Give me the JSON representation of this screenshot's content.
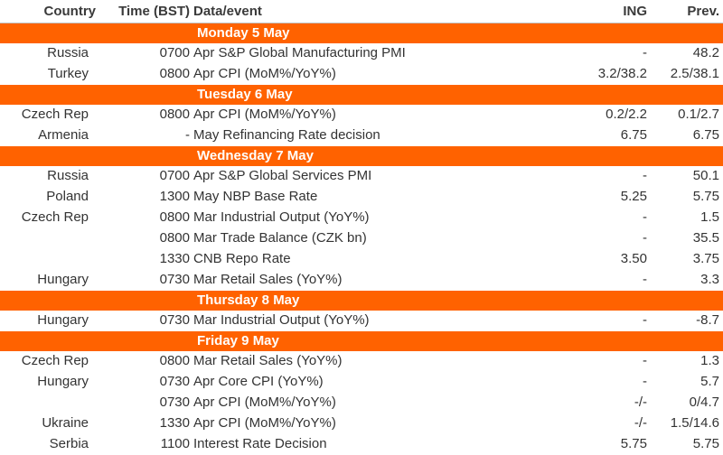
{
  "header": {
    "country": "Country",
    "time": "Time (BST)",
    "event": "Data/event",
    "ing": "ING",
    "prev": "Prev."
  },
  "days": [
    {
      "label": "Monday 5 May",
      "rows": [
        {
          "country": "Russia",
          "time": "0700",
          "event": "Apr S&P Global Manufacturing PMI",
          "ing": "-",
          "prev": "48.2"
        },
        {
          "country": "Turkey",
          "time": "0800",
          "event": "Apr CPI (MoM%/YoY%)",
          "ing": "3.2/38.2",
          "prev": "2.5/38.1"
        }
      ]
    },
    {
      "label": "Tuesday 6 May",
      "rows": [
        {
          "country": "Czech Rep",
          "time": "0800",
          "event": "Apr CPI (MoM%/YoY%)",
          "ing": "0.2/2.2",
          "prev": "0.1/2.7"
        },
        {
          "country": "Armenia",
          "time": "-",
          "event": "May Refinancing Rate decision",
          "ing": "6.75",
          "prev": "6.75"
        }
      ]
    },
    {
      "label": "Wednesday 7 May",
      "rows": [
        {
          "country": "Russia",
          "time": "0700",
          "event": "Apr S&P Global Services PMI",
          "ing": "-",
          "prev": "50.1"
        },
        {
          "country": "Poland",
          "time": "1300",
          "event": "May NBP Base Rate",
          "ing": "5.25",
          "prev": "5.75"
        },
        {
          "country": "Czech Rep",
          "time": "0800",
          "event": "Mar Industrial Output (YoY%)",
          "ing": "-",
          "prev": "1.5"
        },
        {
          "country": "",
          "time": "0800",
          "event": "Mar Trade Balance (CZK bn)",
          "ing": "-",
          "prev": "35.5"
        },
        {
          "country": "",
          "time": "1330",
          "event": "CNB Repo Rate",
          "ing": "3.50",
          "prev": "3.75"
        },
        {
          "country": "Hungary",
          "time": "0730",
          "event": "Mar Retail Sales (YoY%)",
          "ing": "-",
          "prev": "3.3"
        }
      ]
    },
    {
      "label": "Thursday 8 May",
      "rows": [
        {
          "country": "Hungary",
          "time": "0730",
          "event": "Mar Industrial Output (YoY%)",
          "ing": "-",
          "prev": "-8.7"
        }
      ]
    },
    {
      "label": "Friday 9 May",
      "rows": [
        {
          "country": "Czech Rep",
          "time": "0800",
          "event": "Mar Retail Sales (YoY%)",
          "ing": "-",
          "prev": "1.3"
        },
        {
          "country": "Hungary",
          "time": "0730",
          "event": "Apr Core CPI (YoY%)",
          "ing": "-",
          "prev": "5.7"
        },
        {
          "country": "",
          "time": "0730",
          "event": "Apr CPI (MoM%/YoY%)",
          "ing": "-/-",
          "prev": "0/4.7"
        },
        {
          "country": "Ukraine",
          "time": "1330",
          "event": "Apr CPI (MoM%/YoY%)",
          "ing": "-/-",
          "prev": "1.5/14.6"
        },
        {
          "country": "Serbia",
          "time": "1100",
          "event": "Interest Rate Decision",
          "ing": "5.75",
          "prev": "5.75"
        }
      ]
    }
  ],
  "colors": {
    "day_band": "#ff6200",
    "text": "#333333"
  }
}
